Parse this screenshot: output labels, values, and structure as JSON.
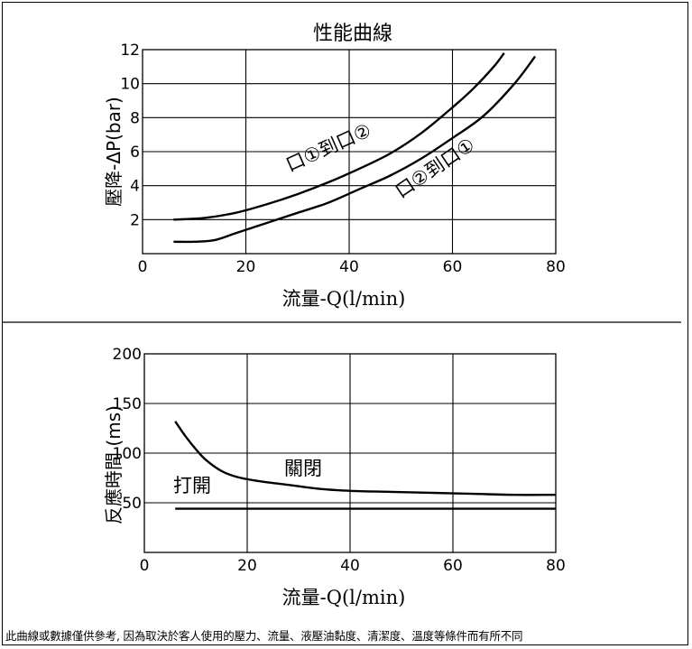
{
  "chart_data": [
    {
      "type": "line",
      "title": "性能曲線",
      "xlabel": "流量-Q(l/min)",
      "ylabel": "壓降-ΔP(bar)",
      "xlim": [
        0,
        80
      ],
      "ylim": [
        0,
        12
      ],
      "xticks": [
        0,
        20,
        40,
        60,
        80
      ],
      "yticks": [
        2,
        4,
        6,
        8,
        10,
        12
      ],
      "grid": true,
      "series": [
        {
          "name": "口①到口②",
          "x": [
            6,
            12,
            18,
            24,
            30,
            36,
            42,
            48,
            54,
            60,
            64,
            68,
            70
          ],
          "y": [
            2.0,
            2.1,
            2.4,
            2.9,
            3.5,
            4.2,
            5.0,
            5.9,
            7.1,
            8.6,
            9.7,
            11.0,
            11.8
          ]
        },
        {
          "name": "口②到口①",
          "x": [
            6,
            10,
            14,
            18,
            24,
            30,
            36,
            42,
            48,
            54,
            60,
            66,
            72,
            76
          ],
          "y": [
            0.7,
            0.7,
            0.8,
            1.2,
            1.8,
            2.4,
            3.0,
            3.8,
            4.6,
            5.6,
            6.8,
            8.1,
            10.0,
            11.6
          ]
        }
      ],
      "annotations": [
        "口①到口②",
        "口②到口①"
      ]
    },
    {
      "type": "line",
      "title": "",
      "xlabel": "流量-Q(l/min)",
      "ylabel": "反應時間 (ms)",
      "xlim": [
        0,
        80
      ],
      "ylim": [
        0,
        200
      ],
      "xticks": [
        0,
        20,
        40,
        60,
        80
      ],
      "yticks": [
        50,
        100,
        150,
        200
      ],
      "grid": true,
      "series": [
        {
          "name": "關閉",
          "x": [
            6,
            8,
            10,
            12,
            15,
            18,
            22,
            28,
            34,
            40,
            48,
            56,
            64,
            72,
            80
          ],
          "y": [
            132,
            117,
            104,
            93,
            82,
            76,
            72,
            68,
            64,
            62,
            61,
            60,
            59,
            58,
            58
          ]
        },
        {
          "name": "打開",
          "x": [
            6,
            80
          ],
          "y": [
            44,
            44
          ]
        }
      ],
      "annotations": [
        "關閉",
        "打開"
      ]
    }
  ],
  "footnote": "此曲線或數據僅供參考, 因為取決於客人使用的壓力、流量、液壓油黏度、清潔度、溫度等條件而有所不同"
}
